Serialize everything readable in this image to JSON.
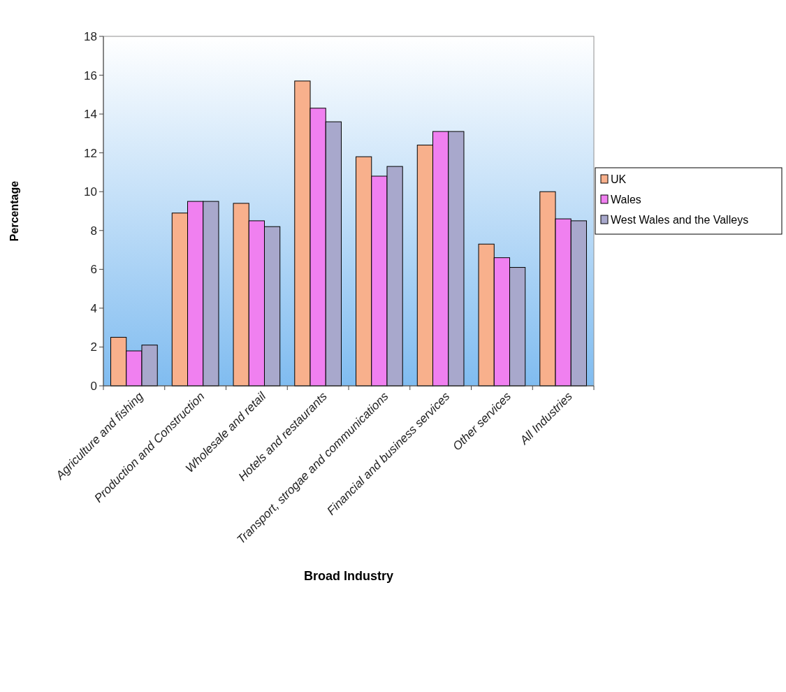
{
  "chart_data": {
    "type": "bar",
    "xlabel": "Broad Industry",
    "ylabel": "Percentage",
    "categories": [
      "Agriculture and fishing",
      "Production and Construction",
      "Wholesale and retail",
      "Hotels and restaurants",
      "Transport, strogae and communications",
      "Financial and business services",
      "Other services",
      "All Industries"
    ],
    "series": [
      {
        "name": "UK",
        "color": "#f8b08c",
        "values": [
          2.5,
          8.9,
          9.4,
          15.7,
          11.8,
          12.4,
          7.3,
          10.0
        ]
      },
      {
        "name": "Wales",
        "color": "#f080f0",
        "values": [
          1.8,
          9.5,
          8.5,
          14.3,
          10.8,
          13.1,
          6.6,
          8.6
        ]
      },
      {
        "name": "West Wales and the Valleys",
        "color": "#a8a8cc",
        "values": [
          2.1,
          9.5,
          8.2,
          13.6,
          11.3,
          13.1,
          6.1,
          8.5
        ]
      }
    ],
    "ylim": [
      0,
      18
    ],
    "yticks": [
      0,
      2,
      4,
      6,
      8,
      10,
      12,
      14,
      16,
      18
    ],
    "grid": false,
    "legend": "right"
  }
}
